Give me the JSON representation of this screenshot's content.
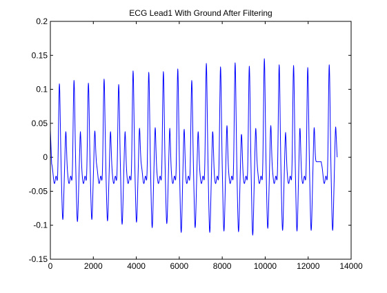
{
  "chart_data": {
    "type": "line",
    "title": "ECG Lead1 With Ground After Filtering",
    "xlabel": "",
    "ylabel": "",
    "xlim": [
      0,
      14000
    ],
    "ylim": [
      -0.15,
      0.2
    ],
    "xticks": [
      0,
      2000,
      4000,
      6000,
      8000,
      10000,
      12000,
      14000
    ],
    "xtick_labels": [
      "0",
      "2000",
      "4000",
      "6000",
      "8000",
      "10000",
      "12000",
      "14000"
    ],
    "yticks": [
      -0.15,
      -0.1,
      -0.05,
      0,
      0.05,
      0.1,
      0.15,
      0.2
    ],
    "ytick_labels": [
      "-0.15",
      "-0.1",
      "-0.05",
      "0",
      "0.05",
      "0.1",
      "0.15",
      "0.2"
    ],
    "grid": false,
    "legend": "none",
    "series": [
      {
        "color": "#0000ff",
        "x_start": 0,
        "x_end": 13350,
        "beat_times": [
          420,
          1100,
          1770,
          2500,
          3180,
          3850,
          4580,
          5260,
          5930,
          6580,
          7260,
          7920,
          8600,
          9260,
          9960,
          10650,
          11320,
          11980,
          12980
        ],
        "r_peaks": [
          0.118,
          0.123,
          0.119,
          0.125,
          0.117,
          0.137,
          0.135,
          0.136,
          0.14,
          0.123,
          0.148,
          0.143,
          0.149,
          0.144,
          0.155,
          0.146,
          0.145,
          0.142,
          0.146
        ],
        "s_troughs": [
          -0.085,
          -0.088,
          -0.085,
          -0.087,
          -0.092,
          -0.089,
          -0.097,
          -0.091,
          -0.104,
          -0.097,
          -0.104,
          -0.102,
          -0.103,
          -0.108,
          -0.098,
          -0.101,
          -0.102,
          -0.101,
          -0.101
        ],
        "t_waves": [
          0.045,
          0.045,
          0.046,
          0.045,
          0.045,
          0.05,
          0.051,
          0.05,
          0.053,
          0.045,
          0.048,
          0.054,
          0.044,
          0.05,
          0.054,
          0.044,
          0.053,
          0.051,
          0.052
        ],
        "baseline_low": -0.033,
        "start_value": 0.04,
        "end_value": 0.0
      }
    ]
  }
}
